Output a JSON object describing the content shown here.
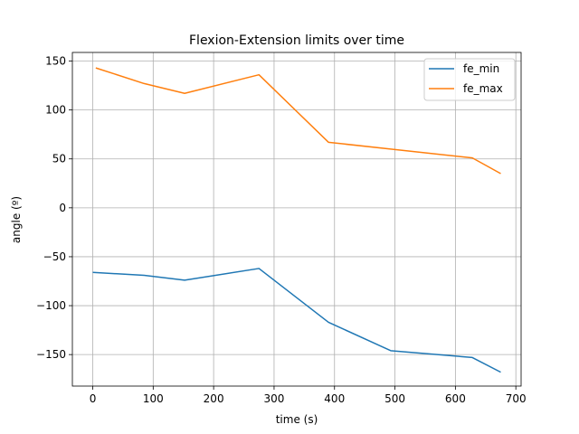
{
  "chart_data": {
    "type": "line",
    "title": "Flexion-Extension limits over time",
    "xlabel": "time (s)",
    "ylabel": "angle (º)",
    "xlim": [
      -33.7,
      708.7
    ],
    "ylim": [
      -182.2,
      158.8
    ],
    "xticks": [
      0,
      100,
      200,
      300,
      400,
      500,
      600,
      700
    ],
    "yticks": [
      -150,
      -100,
      -50,
      0,
      50,
      100,
      150
    ],
    "xtick_labels": [
      "0",
      "100",
      "200",
      "300",
      "400",
      "500",
      "600",
      "700"
    ],
    "ytick_labels": [
      "−150",
      "−100",
      "−50",
      "0",
      "50",
      "100",
      "150"
    ],
    "grid": true,
    "legend_position": "top-right",
    "series": [
      {
        "name": "fe_min",
        "color": "#1f77b4",
        "points": [
          [
            0,
            -66
          ],
          [
            85,
            -69
          ],
          [
            152,
            -74
          ],
          [
            275,
            -62
          ],
          [
            390,
            -117
          ],
          [
            493,
            -146
          ],
          [
            628,
            -153
          ],
          [
            675,
            -168
          ]
        ]
      },
      {
        "name": "fe_max",
        "color": "#ff7f0e",
        "points": [
          [
            5,
            143
          ],
          [
            85,
            127
          ],
          [
            152,
            117
          ],
          [
            275,
            136
          ],
          [
            390,
            67
          ],
          [
            493,
            60
          ],
          [
            628,
            51
          ],
          [
            675,
            35
          ]
        ]
      }
    ]
  }
}
